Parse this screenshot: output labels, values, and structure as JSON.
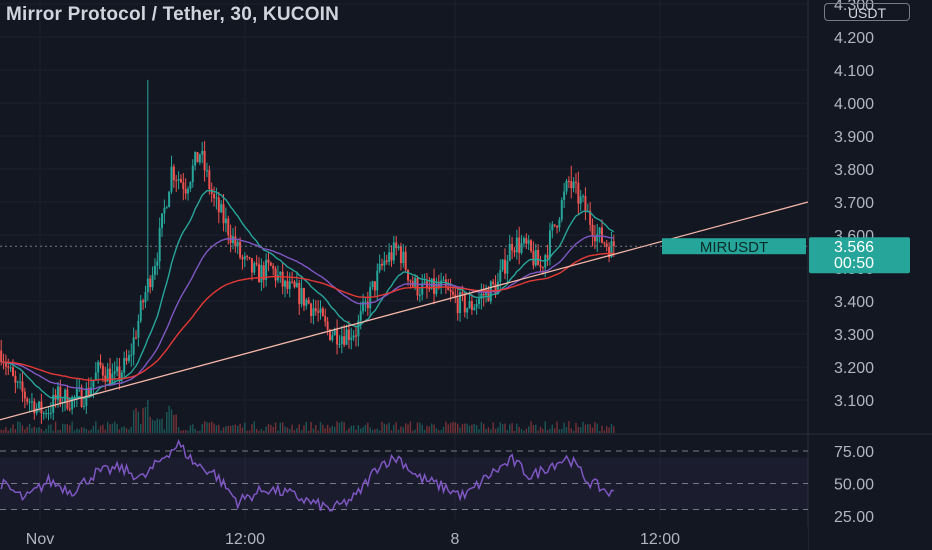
{
  "header": {
    "title": "Mirror Protocol / Tether, 30, KUCOIN",
    "currency": "USDT"
  },
  "price_axis": {
    "ticks": [
      "4.300",
      "4.200",
      "4.100",
      "4.000",
      "3.900",
      "3.800",
      "3.700",
      "3.600",
      "3.500",
      "3.400",
      "3.300",
      "3.200",
      "3.100"
    ],
    "tick_values": [
      4.3,
      4.2,
      4.1,
      4.0,
      3.9,
      3.8,
      3.7,
      3.6,
      3.5,
      3.4,
      3.3,
      3.2,
      3.1
    ]
  },
  "rsi_axis": {
    "ticks": [
      "75.00",
      "50.00",
      "25.00"
    ],
    "tick_values": [
      75,
      50,
      25
    ]
  },
  "time_axis": {
    "labels": [
      "Nov",
      "12:00",
      "8",
      "12:00"
    ]
  },
  "price_tag": {
    "symbol": "MIRUSDT",
    "price": "3.566",
    "countdown": "00:50"
  },
  "colors": {
    "background": "#131722",
    "up": "#26a69a",
    "down": "#ef5350",
    "ema_fast": "#26a69a",
    "ema_mid": "#7e57c2",
    "ema_slow": "#e53935",
    "trendline": "#f5b7a8",
    "rsi": "#7e57c2",
    "tag": "#26a69a"
  },
  "chart_data": [
    {
      "type": "candlestick",
      "symbol": "MIRUSDT",
      "exchange": "KUCOIN",
      "timeframe": "30",
      "ylim": [
        3.05,
        4.3
      ],
      "last_price": 3.566,
      "key_path": [
        [
          0,
          3.25
        ],
        [
          6,
          3.14
        ],
        [
          12,
          3.1
        ],
        [
          18,
          3.05
        ],
        [
          24,
          3.11
        ],
        [
          30,
          3.1
        ],
        [
          36,
          3.12
        ],
        [
          42,
          3.2
        ],
        [
          48,
          3.16
        ],
        [
          54,
          3.22
        ],
        [
          60,
          3.4
        ],
        [
          66,
          3.55
        ],
        [
          72,
          3.8
        ],
        [
          78,
          3.75
        ],
        [
          84,
          3.85
        ],
        [
          90,
          3.7
        ],
        [
          96,
          3.62
        ],
        [
          102,
          3.52
        ],
        [
          108,
          3.48
        ],
        [
          114,
          3.5
        ],
        [
          120,
          3.44
        ],
        [
          126,
          3.42
        ],
        [
          132,
          3.38
        ],
        [
          138,
          3.31
        ],
        [
          144,
          3.3
        ],
        [
          150,
          3.31
        ],
        [
          156,
          3.42
        ],
        [
          162,
          3.52
        ],
        [
          168,
          3.56
        ],
        [
          174,
          3.45
        ],
        [
          180,
          3.43
        ],
        [
          186,
          3.44
        ],
        [
          192,
          3.4
        ],
        [
          198,
          3.38
        ],
        [
          204,
          3.42
        ],
        [
          210,
          3.45
        ],
        [
          216,
          3.58
        ],
        [
          222,
          3.56
        ],
        [
          228,
          3.5
        ],
        [
          234,
          3.63
        ],
        [
          240,
          3.76
        ],
        [
          246,
          3.69
        ],
        [
          252,
          3.6
        ],
        [
          258,
          3.56
        ]
      ],
      "overlays": [
        "EMA fast",
        "EMA mid",
        "EMA slow",
        "trendline"
      ],
      "volume": "histogram"
    },
    {
      "type": "line",
      "name": "RSI",
      "ylim": [
        20,
        85
      ],
      "levels": [
        75,
        50,
        30
      ],
      "key_path": [
        [
          0,
          50
        ],
        [
          10,
          38
        ],
        [
          20,
          52
        ],
        [
          30,
          44
        ],
        [
          40,
          58
        ],
        [
          50,
          62
        ],
        [
          60,
          54
        ],
        [
          70,
          73
        ],
        [
          75,
          80
        ],
        [
          82,
          65
        ],
        [
          90,
          58
        ],
        [
          100,
          36
        ],
        [
          112,
          46
        ],
        [
          122,
          42
        ],
        [
          130,
          36
        ],
        [
          140,
          30
        ],
        [
          150,
          40
        ],
        [
          160,
          65
        ],
        [
          168,
          70
        ],
        [
          176,
          55
        ],
        [
          186,
          48
        ],
        [
          196,
          40
        ],
        [
          206,
          56
        ],
        [
          216,
          68
        ],
        [
          224,
          55
        ],
        [
          232,
          64
        ],
        [
          240,
          70
        ],
        [
          248,
          52
        ],
        [
          258,
          42
        ]
      ]
    }
  ]
}
